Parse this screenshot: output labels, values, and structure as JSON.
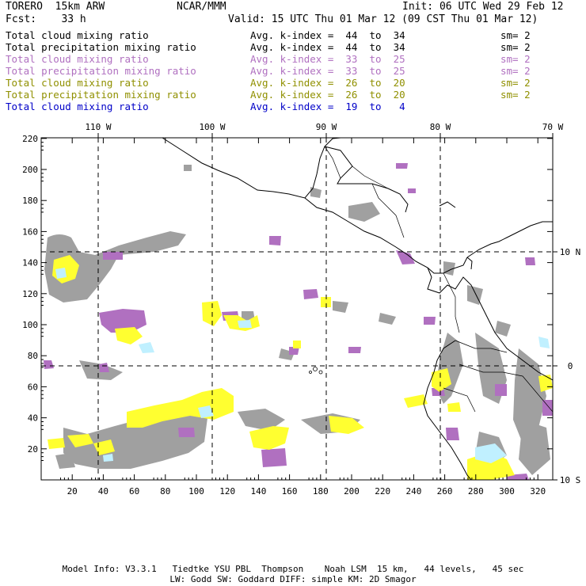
{
  "header": {
    "model": "TORERO  15km ARW",
    "center": "NCAR/MMM",
    "init": "Init: 06 UTC Wed 29 Feb 12",
    "fcst": "Fcst:    33 h",
    "valid": "Valid: 15 UTC Thu 01 Mar 12 (09 CST Thu 01 Mar 12)"
  },
  "legend": [
    {
      "name": "Total cloud mixing ratio",
      "stat": "Avg. k-index =  44  to  34",
      "sm": "sm= 2",
      "color": "#000000"
    },
    {
      "name": "Total precipitation mixing ratio",
      "stat": "Avg. k-index =  44  to  34",
      "sm": "sm= 2",
      "color": "#000000"
    },
    {
      "name": "Total cloud mixing ratio",
      "stat": "Avg. k-index =  33  to  25",
      "sm": "sm= 2",
      "color": "#b070c0"
    },
    {
      "name": "Total precipitation mixing ratio",
      "stat": "Avg. k-index =  33  to  25",
      "sm": "sm= 2",
      "color": "#b070c0"
    },
    {
      "name": "Total cloud mixing ratio",
      "stat": "Avg. k-index =  26  to  20",
      "sm": "sm= 2",
      "color": "#909000"
    },
    {
      "name": "Total precipitation mixing ratio",
      "stat": "Avg. k-index =  26  to  20",
      "sm": "sm= 2",
      "color": "#909000"
    },
    {
      "name": "Total cloud mixing ratio",
      "stat": "Avg. k-index =  19  to   4",
      "sm": "",
      "color": "#0000c8"
    }
  ],
  "map": {
    "top_labels": [
      "110 W",
      "100 W",
      "90 W",
      "80 W",
      "70 W"
    ],
    "right_labels": [
      "10 N",
      "0",
      "10 S"
    ],
    "y_ticks": [
      "20",
      "40",
      "60",
      "80",
      "100",
      "120",
      "140",
      "160",
      "180",
      "200",
      "220"
    ],
    "x_ticks": [
      "20",
      "40",
      "60",
      "80",
      "100",
      "120",
      "140",
      "160",
      "180",
      "200",
      "220",
      "240",
      "260",
      "280",
      "300",
      "320"
    ],
    "colors": {
      "gray": "#a0a0a0",
      "purple": "#b070c0",
      "yellow": "#ffff30",
      "lightblue": "#c0f0ff"
    }
  },
  "footer": {
    "line1": "Model Info: V3.3.1   Tiedtke YSU PBL  Thompson    Noah LSM  15 km,   44 levels,   45 sec",
    "line2": "LW: Godd SW: Goddard DIFF: simple KM: 2D Smagor"
  }
}
